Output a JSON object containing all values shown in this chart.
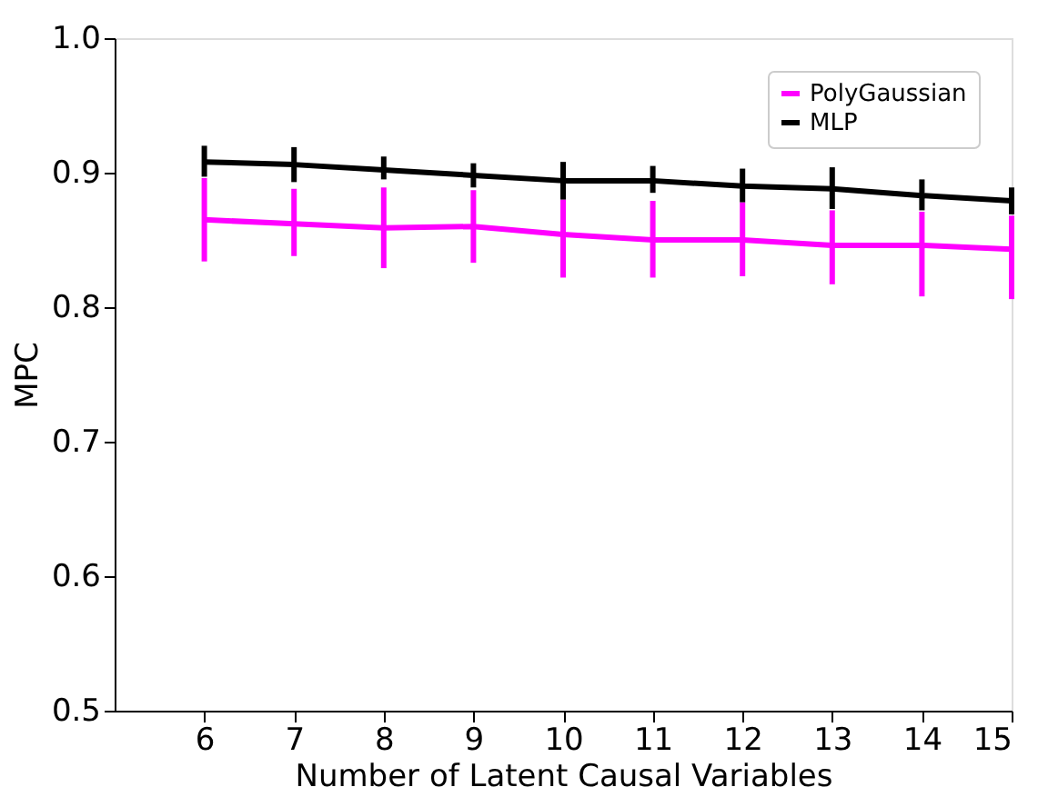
{
  "chart_data": {
    "type": "line",
    "xlabel": "Number of Latent Causal Variables",
    "ylabel": "MPC",
    "x": [
      6,
      7,
      8,
      9,
      10,
      11,
      12,
      13,
      14,
      15
    ],
    "xlim": [
      5,
      15
    ],
    "xticks": [
      6,
      7,
      8,
      9,
      10,
      11,
      12,
      13,
      14,
      15
    ],
    "ylim": [
      0.5,
      1.0
    ],
    "yticks": [
      {
        "value": 0.5,
        "label": "0.5"
      },
      {
        "value": 0.6,
        "label": "0.6"
      },
      {
        "value": 0.7,
        "label": "0.7"
      },
      {
        "value": 0.8,
        "label": "0.8"
      },
      {
        "value": 0.9,
        "label": "0.9"
      },
      {
        "value": 1.0,
        "label": "1.0"
      }
    ],
    "series": [
      {
        "name": "PolyGaussian",
        "color": "#ff00ff",
        "values": [
          0.865,
          0.862,
          0.859,
          0.86,
          0.854,
          0.85,
          0.85,
          0.846,
          0.846,
          0.843
        ],
        "errors": [
          [
            0.834,
            0.896
          ],
          [
            0.838,
            0.888
          ],
          [
            0.829,
            0.889
          ],
          [
            0.833,
            0.887
          ],
          [
            0.822,
            0.88
          ],
          [
            0.822,
            0.879
          ],
          [
            0.823,
            0.878
          ],
          [
            0.817,
            0.872
          ],
          [
            0.808,
            0.871
          ],
          [
            0.806,
            0.868
          ]
        ]
      },
      {
        "name": "MLP",
        "color": "#000000",
        "values": [
          0.908,
          0.906,
          0.902,
          0.898,
          0.894,
          0.894,
          0.89,
          0.888,
          0.883,
          0.879
        ],
        "errors": [
          [
            0.897,
            0.92
          ],
          [
            0.893,
            0.919
          ],
          [
            0.895,
            0.912
          ],
          [
            0.889,
            0.907
          ],
          [
            0.88,
            0.908
          ],
          [
            0.885,
            0.905
          ],
          [
            0.878,
            0.903
          ],
          [
            0.873,
            0.904
          ],
          [
            0.872,
            0.895
          ],
          [
            0.869,
            0.889
          ]
        ]
      }
    ],
    "legend": "top right",
    "grid": false
  }
}
